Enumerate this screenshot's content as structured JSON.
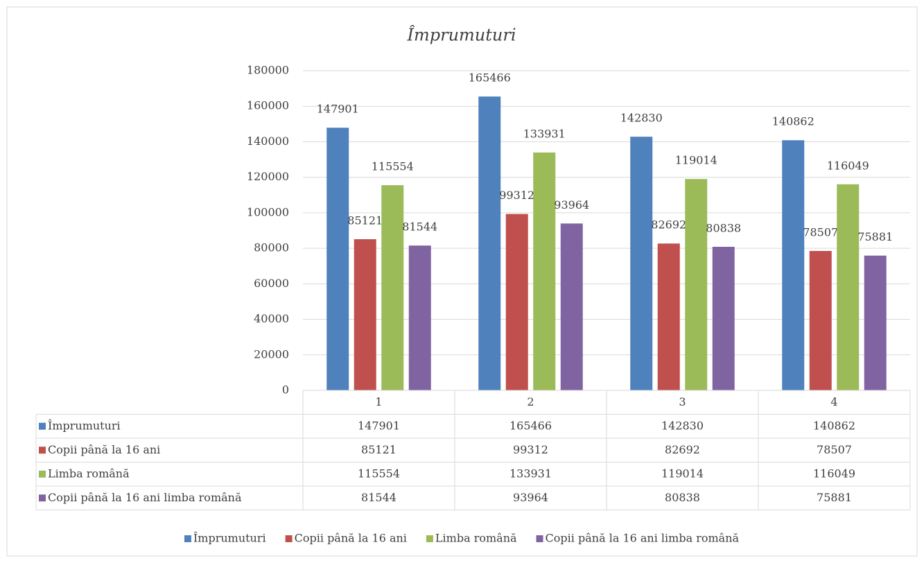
{
  "chart_data": {
    "type": "bar",
    "title": "Împrumuturi",
    "categories": [
      "1",
      "2",
      "3",
      "4"
    ],
    "series": [
      {
        "name": "Împrumuturi",
        "color": "#4f81bd",
        "values": [
          147901,
          165466,
          142830,
          140862
        ]
      },
      {
        "name": "Copii până la 16 ani",
        "color": "#c0504d",
        "values": [
          85121,
          99312,
          82692,
          78507
        ]
      },
      {
        "name": "Limba română",
        "color": "#9bbb59",
        "values": [
          115554,
          133931,
          119014,
          116049
        ]
      },
      {
        "name": "Copii până la 16 ani limba română",
        "color": "#8064a2",
        "values": [
          81544,
          93964,
          80838,
          75881
        ]
      }
    ],
    "ylim": [
      0,
      180000
    ],
    "yticks": [
      0,
      20000,
      40000,
      60000,
      80000,
      100000,
      120000,
      140000,
      160000,
      180000
    ],
    "grid": true,
    "data_labels": true,
    "data_table": true,
    "legend": "bottom"
  }
}
